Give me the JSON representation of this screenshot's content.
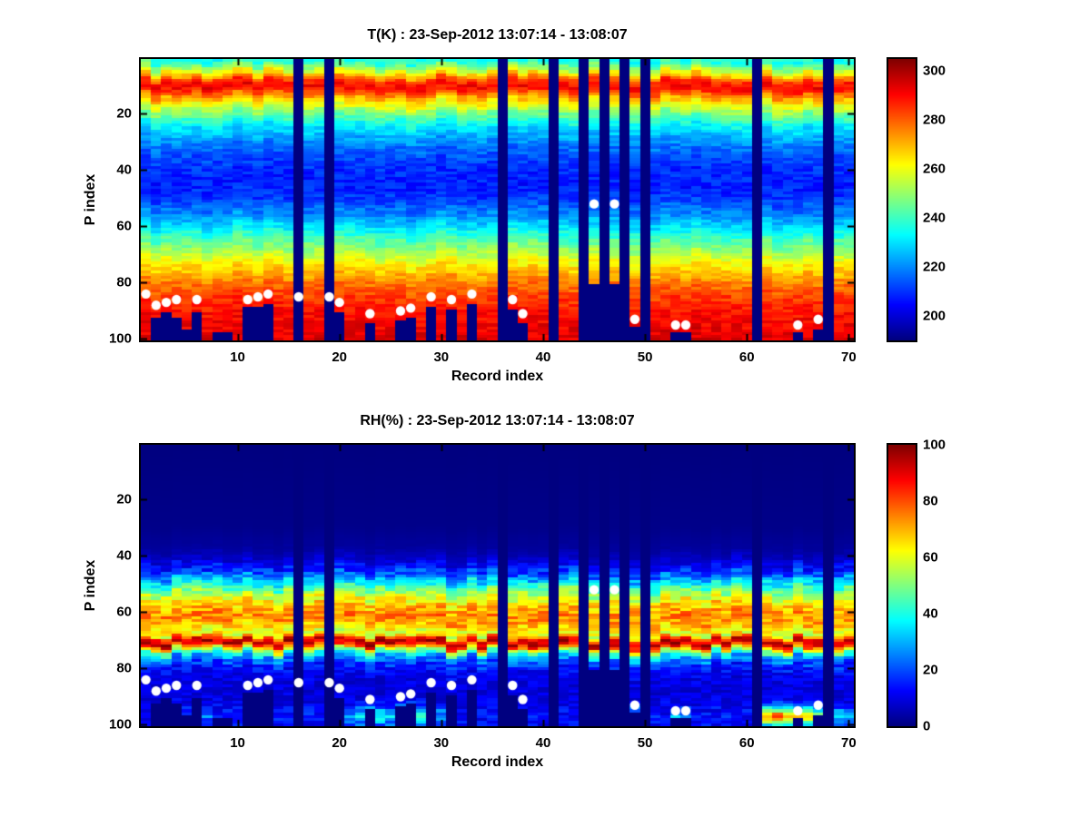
{
  "figure": {
    "background": "#ffffff",
    "colormap": "jet",
    "marker_color": "#ffffff",
    "background_data_color": "#00008f"
  },
  "dots": [
    [
      1,
      84
    ],
    [
      2,
      88
    ],
    [
      3,
      87
    ],
    [
      4,
      86
    ],
    [
      6,
      86
    ],
    [
      11,
      86
    ],
    [
      12,
      85
    ],
    [
      13,
      84
    ],
    [
      16,
      85
    ],
    [
      19,
      85
    ],
    [
      20,
      87
    ],
    [
      23,
      91
    ],
    [
      26,
      90
    ],
    [
      27,
      89
    ],
    [
      29,
      85
    ],
    [
      31,
      86
    ],
    [
      33,
      84
    ],
    [
      37,
      86
    ],
    [
      38,
      91
    ],
    [
      45,
      52
    ],
    [
      47,
      52
    ],
    [
      49,
      93
    ],
    [
      53,
      95
    ],
    [
      54,
      95
    ],
    [
      65,
      95
    ],
    [
      67,
      93
    ]
  ],
  "chart_data": [
    {
      "id": "temperature",
      "type": "heatmap",
      "title": "T(K) : 23-Sep-2012 13:07:14 - 13:08:07",
      "xlabel": "Record index",
      "ylabel": "P index",
      "x_range": [
        1,
        70
      ],
      "y_range": [
        1,
        100
      ],
      "y_axis_reversed": true,
      "x_ticks": [
        10,
        20,
        30,
        40,
        50,
        60,
        70
      ],
      "y_ticks": [
        20,
        40,
        60,
        80,
        100
      ],
      "colorbar": {
        "min": 190,
        "max": 305,
        "ticks": [
          200,
          220,
          240,
          260,
          280,
          300
        ]
      },
      "noise": 5,
      "missing_records": [
        16,
        19,
        36,
        41,
        44,
        46,
        48,
        50,
        61,
        68
      ],
      "bottom_cutoff": [
        100,
        92,
        90,
        92,
        96,
        90,
        100,
        97,
        97,
        100,
        88,
        88,
        87,
        100,
        100,
        100,
        100,
        100,
        100,
        90,
        100,
        100,
        94,
        100,
        100,
        93,
        92,
        100,
        88,
        100,
        89,
        100,
        87,
        100,
        100,
        100,
        89,
        94,
        100,
        100,
        100,
        100,
        100,
        100,
        80,
        100,
        80,
        100,
        95,
        100,
        100,
        100,
        97,
        97,
        100,
        100,
        100,
        100,
        100,
        100,
        100,
        100,
        100,
        100,
        97,
        100,
        96,
        100,
        100,
        100
      ],
      "profile": [
        [
          1,
          235
        ],
        [
          2,
          240
        ],
        [
          4,
          252
        ],
        [
          6,
          268
        ],
        [
          8,
          285
        ],
        [
          10,
          292
        ],
        [
          12,
          285
        ],
        [
          14,
          272
        ],
        [
          16,
          262
        ],
        [
          20,
          246
        ],
        [
          25,
          230
        ],
        [
          30,
          220
        ],
        [
          35,
          213
        ],
        [
          40,
          209
        ],
        [
          45,
          207
        ],
        [
          50,
          211
        ],
        [
          55,
          219
        ],
        [
          60,
          230
        ],
        [
          65,
          243
        ],
        [
          70,
          255
        ],
        [
          75,
          267
        ],
        [
          80,
          277
        ],
        [
          85,
          284
        ],
        [
          90,
          289
        ],
        [
          95,
          292
        ],
        [
          100,
          294
        ]
      ]
    },
    {
      "id": "relative-humidity",
      "type": "heatmap",
      "title": "RH(%) : 23-Sep-2012 13:07:14 - 13:08:07",
      "xlabel": "Record index",
      "ylabel": "P index",
      "x_range": [
        1,
        70
      ],
      "y_range": [
        1,
        100
      ],
      "y_axis_reversed": true,
      "x_ticks": [
        10,
        20,
        30,
        40,
        50,
        60,
        70
      ],
      "y_ticks": [
        20,
        40,
        60,
        80,
        100
      ],
      "colorbar": {
        "min": 0,
        "max": 100,
        "ticks": [
          0,
          20,
          40,
          60,
          80,
          100
        ]
      },
      "noise": 8,
      "noise_gated": true,
      "missing_records": [
        16,
        19,
        36,
        41,
        44,
        46,
        48,
        50,
        61,
        68
      ],
      "bottom_cutoff": [
        100,
        92,
        90,
        92,
        96,
        90,
        100,
        97,
        97,
        100,
        88,
        88,
        87,
        100,
        100,
        100,
        100,
        100,
        100,
        90,
        100,
        100,
        94,
        100,
        100,
        93,
        92,
        100,
        88,
        100,
        89,
        100,
        87,
        100,
        100,
        100,
        89,
        94,
        100,
        100,
        100,
        100,
        100,
        100,
        80,
        100,
        80,
        100,
        95,
        100,
        100,
        100,
        97,
        97,
        100,
        100,
        100,
        100,
        100,
        100,
        100,
        100,
        100,
        100,
        97,
        100,
        96,
        100,
        100,
        100
      ],
      "surface_bump": [
        0,
        0,
        0,
        0,
        10,
        12,
        10,
        0,
        0,
        0,
        0,
        0,
        0,
        0,
        0,
        0,
        0,
        0,
        0,
        10,
        15,
        20,
        45,
        25,
        20,
        40,
        50,
        30,
        20,
        15,
        25,
        0,
        0,
        0,
        0,
        0,
        15,
        20,
        0,
        0,
        0,
        0,
        0,
        0,
        0,
        0,
        0,
        0,
        20,
        0,
        0,
        0,
        15,
        15,
        0,
        0,
        0,
        0,
        0,
        0,
        0,
        55,
        65,
        50,
        55,
        45,
        40,
        0,
        20,
        15
      ],
      "profile": [
        [
          1,
          0
        ],
        [
          30,
          1
        ],
        [
          38,
          3
        ],
        [
          42,
          8
        ],
        [
          46,
          18
        ],
        [
          50,
          38
        ],
        [
          54,
          55
        ],
        [
          57,
          66
        ],
        [
          60,
          72
        ],
        [
          62,
          75
        ],
        [
          64,
          71
        ],
        [
          66,
          65
        ],
        [
          68,
          58
        ],
        [
          70,
          88
        ],
        [
          71,
          95
        ],
        [
          72,
          88
        ],
        [
          74,
          52
        ],
        [
          76,
          30
        ],
        [
          78,
          20
        ],
        [
          80,
          14
        ],
        [
          84,
          10
        ],
        [
          88,
          9
        ],
        [
          92,
          10
        ],
        [
          96,
          14
        ],
        [
          100,
          12
        ]
      ]
    }
  ]
}
